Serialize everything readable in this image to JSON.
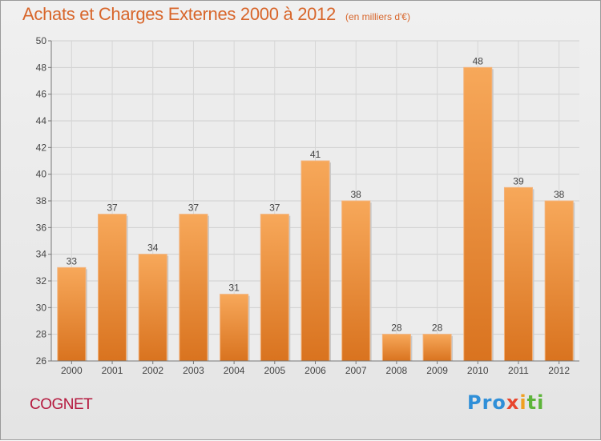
{
  "chart_data": {
    "type": "bar",
    "title": "Achats et Charges Externes 2000 à 2012",
    "unit_label": "(en milliers d'€)",
    "categories": [
      "2000",
      "2001",
      "2002",
      "2003",
      "2004",
      "2005",
      "2006",
      "2007",
      "2008",
      "2009",
      "2010",
      "2011",
      "2012"
    ],
    "values": [
      33,
      37,
      34,
      37,
      31,
      37,
      41,
      38,
      28,
      28,
      48,
      39,
      38
    ],
    "ylim": [
      26,
      50
    ],
    "yticks": [
      26,
      28,
      30,
      32,
      34,
      36,
      38,
      40,
      42,
      44,
      46,
      48,
      50
    ],
    "xlabel": "",
    "ylabel": "",
    "grid": true,
    "bar_color_top": "#f7a85a",
    "bar_color_bottom": "#d9731f"
  },
  "footer": {
    "commune": "COGNET",
    "logo": {
      "parts": [
        "Pro",
        "x",
        "i",
        "ti"
      ],
      "colors": [
        "#2f8fd8",
        "#e8462e",
        "#f0a020",
        "#5db43a"
      ]
    }
  }
}
